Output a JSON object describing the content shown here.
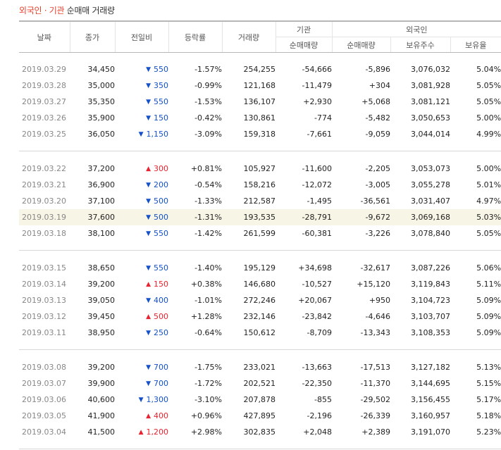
{
  "title": {
    "part1": "외국인",
    "sep": " · ",
    "part2": "기관",
    "rest": " 순매매 거래량"
  },
  "headers": {
    "date": "날짜",
    "close": "종가",
    "prev": "전일비",
    "rate": "등락률",
    "volume": "거래량",
    "inst": "기관",
    "foreign": "외국인",
    "inst_net": "순매매량",
    "for_net": "순매매량",
    "for_shares": "보유주수",
    "for_ratio": "보유율"
  },
  "colors": {
    "up": "#e8222e",
    "down": "#1450c8",
    "highlight": "#f7f5e6"
  },
  "groups": [
    [
      {
        "date": "2019.03.29",
        "close": "34,450",
        "dir": "dn",
        "chg": "550",
        "rate": "-1.57%",
        "vol": "254,255",
        "inst": "-54,666",
        "for": "-5,896",
        "shares": "3,076,032",
        "ratio": "5.04%"
      },
      {
        "date": "2019.03.28",
        "close": "35,000",
        "dir": "dn",
        "chg": "350",
        "rate": "-0.99%",
        "vol": "121,168",
        "inst": "-11,479",
        "for": "+304",
        "shares": "3,081,928",
        "ratio": "5.05%"
      },
      {
        "date": "2019.03.27",
        "close": "35,350",
        "dir": "dn",
        "chg": "550",
        "rate": "-1.53%",
        "vol": "136,107",
        "inst": "+2,930",
        "for": "+5,068",
        "shares": "3,081,121",
        "ratio": "5.05%"
      },
      {
        "date": "2019.03.26",
        "close": "35,900",
        "dir": "dn",
        "chg": "150",
        "rate": "-0.42%",
        "vol": "130,861",
        "inst": "-774",
        "for": "-5,482",
        "shares": "3,050,653",
        "ratio": "5.00%"
      },
      {
        "date": "2019.03.25",
        "close": "36,050",
        "dir": "dn",
        "chg": "1,150",
        "rate": "-3.09%",
        "vol": "159,318",
        "inst": "-7,661",
        "for": "-9,059",
        "shares": "3,044,014",
        "ratio": "4.99%"
      }
    ],
    [
      {
        "date": "2019.03.22",
        "close": "37,200",
        "dir": "up",
        "chg": "300",
        "rate": "+0.81%",
        "vol": "105,927",
        "inst": "-11,600",
        "for": "-2,205",
        "shares": "3,053,073",
        "ratio": "5.00%"
      },
      {
        "date": "2019.03.21",
        "close": "36,900",
        "dir": "dn",
        "chg": "200",
        "rate": "-0.54%",
        "vol": "158,216",
        "inst": "-12,072",
        "for": "-3,005",
        "shares": "3,055,278",
        "ratio": "5.01%"
      },
      {
        "date": "2019.03.20",
        "close": "37,100",
        "dir": "dn",
        "chg": "500",
        "rate": "-1.33%",
        "vol": "212,587",
        "inst": "-1,495",
        "for": "-36,561",
        "shares": "3,031,407",
        "ratio": "4.97%"
      },
      {
        "date": "2019.03.19",
        "close": "37,600",
        "dir": "dn",
        "chg": "500",
        "rate": "-1.31%",
        "vol": "193,535",
        "inst": "-28,791",
        "for": "-9,672",
        "shares": "3,069,168",
        "ratio": "5.03%",
        "hl": true
      },
      {
        "date": "2019.03.18",
        "close": "38,100",
        "dir": "dn",
        "chg": "550",
        "rate": "-1.42%",
        "vol": "261,599",
        "inst": "-60,381",
        "for": "-3,226",
        "shares": "3,078,840",
        "ratio": "5.05%"
      }
    ],
    [
      {
        "date": "2019.03.15",
        "close": "38,650",
        "dir": "dn",
        "chg": "550",
        "rate": "-1.40%",
        "vol": "195,129",
        "inst": "+34,698",
        "for": "-32,617",
        "shares": "3,087,226",
        "ratio": "5.06%"
      },
      {
        "date": "2019.03.14",
        "close": "39,200",
        "dir": "up",
        "chg": "150",
        "rate": "+0.38%",
        "vol": "146,680",
        "inst": "-10,527",
        "for": "+15,120",
        "shares": "3,119,843",
        "ratio": "5.11%"
      },
      {
        "date": "2019.03.13",
        "close": "39,050",
        "dir": "dn",
        "chg": "400",
        "rate": "-1.01%",
        "vol": "272,246",
        "inst": "+20,067",
        "for": "+950",
        "shares": "3,104,723",
        "ratio": "5.09%"
      },
      {
        "date": "2019.03.12",
        "close": "39,450",
        "dir": "up",
        "chg": "500",
        "rate": "+1.28%",
        "vol": "232,146",
        "inst": "-23,842",
        "for": "-4,646",
        "shares": "3,103,707",
        "ratio": "5.09%"
      },
      {
        "date": "2019.03.11",
        "close": "38,950",
        "dir": "dn",
        "chg": "250",
        "rate": "-0.64%",
        "vol": "150,612",
        "inst": "-8,709",
        "for": "-13,343",
        "shares": "3,108,353",
        "ratio": "5.09%"
      }
    ],
    [
      {
        "date": "2019.03.08",
        "close": "39,200",
        "dir": "dn",
        "chg": "700",
        "rate": "-1.75%",
        "vol": "233,021",
        "inst": "-13,663",
        "for": "-17,513",
        "shares": "3,127,182",
        "ratio": "5.13%"
      },
      {
        "date": "2019.03.07",
        "close": "39,900",
        "dir": "dn",
        "chg": "700",
        "rate": "-1.72%",
        "vol": "202,521",
        "inst": "-22,350",
        "for": "-11,370",
        "shares": "3,144,695",
        "ratio": "5.15%"
      },
      {
        "date": "2019.03.06",
        "close": "40,600",
        "dir": "dn",
        "chg": "1,300",
        "rate": "-3.10%",
        "vol": "207,878",
        "inst": "-855",
        "for": "-29,502",
        "shares": "3,156,455",
        "ratio": "5.17%"
      },
      {
        "date": "2019.03.05",
        "close": "41,900",
        "dir": "up",
        "chg": "400",
        "rate": "+0.96%",
        "vol": "427,895",
        "inst": "-2,196",
        "for": "-26,339",
        "shares": "3,160,957",
        "ratio": "5.18%"
      },
      {
        "date": "2019.03.04",
        "close": "41,500",
        "dir": "up",
        "chg": "1,200",
        "rate": "+2.98%",
        "vol": "302,835",
        "inst": "+2,048",
        "for": "+2,389",
        "shares": "3,191,070",
        "ratio": "5.23%"
      }
    ]
  ]
}
